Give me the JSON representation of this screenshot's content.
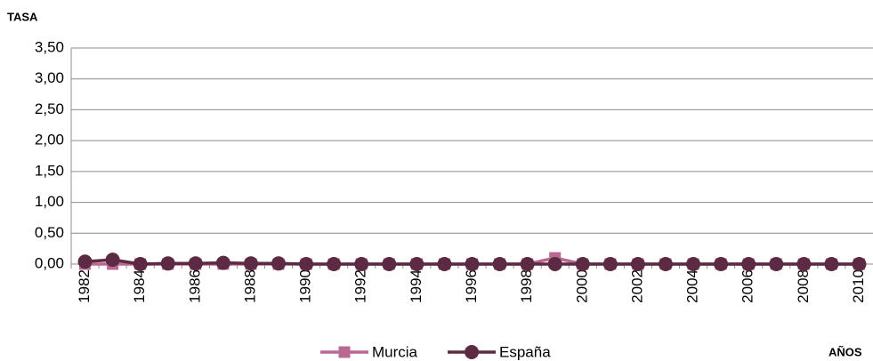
{
  "chart_data": {
    "type": "line",
    "y_axis_label": "TASA",
    "x_axis_label": "AÑOS",
    "categories": [
      "1982",
      null,
      "1984",
      null,
      "1986",
      null,
      "1988",
      null,
      "1990",
      null,
      "1992",
      null,
      "1994",
      null,
      "1996",
      null,
      "1998",
      null,
      "2000",
      null,
      "2002",
      null,
      "2004",
      null,
      "2006",
      null,
      "2008",
      null,
      "2010"
    ],
    "series": [
      {
        "name": "Murcia",
        "color": "#b9698f",
        "marker": "square",
        "values": [
          0.0,
          0.0,
          0.0,
          0.0,
          0.0,
          0.0,
          0.0,
          0.0,
          0.0,
          0.0,
          0.0,
          0.0,
          0.0,
          0.0,
          0.0,
          0.0,
          0.0,
          0.1,
          0.0,
          0.0,
          0.0,
          0.0,
          0.0,
          0.0,
          0.0,
          0.0,
          0.0,
          0.0,
          0.0
        ]
      },
      {
        "name": "España",
        "color": "#5c2a42",
        "marker": "circle",
        "values": [
          0.04,
          0.07,
          0.0,
          0.01,
          0.01,
          0.02,
          0.01,
          0.01,
          0.0,
          0.0,
          0.0,
          0.0,
          0.0,
          0.0,
          0.0,
          0.0,
          0.0,
          0.0,
          0.0,
          0.0,
          0.0,
          0.0,
          0.0,
          0.0,
          0.0,
          0.0,
          0.0,
          0.0,
          0.0
        ]
      }
    ],
    "ylim": [
      0,
      3.5
    ],
    "yticks": [
      {
        "value": 0,
        "label": "0,00"
      },
      {
        "value": 0.5,
        "label": "0,50"
      },
      {
        "value": 1,
        "label": "1,00"
      },
      {
        "value": 1.5,
        "label": "1,50"
      },
      {
        "value": 2,
        "label": "2,00"
      },
      {
        "value": 2.5,
        "label": "2,50"
      },
      {
        "value": 3,
        "label": "3,00"
      },
      {
        "value": 3.5,
        "label": "3,50"
      }
    ],
    "grid": true,
    "legend": "bottom"
  }
}
